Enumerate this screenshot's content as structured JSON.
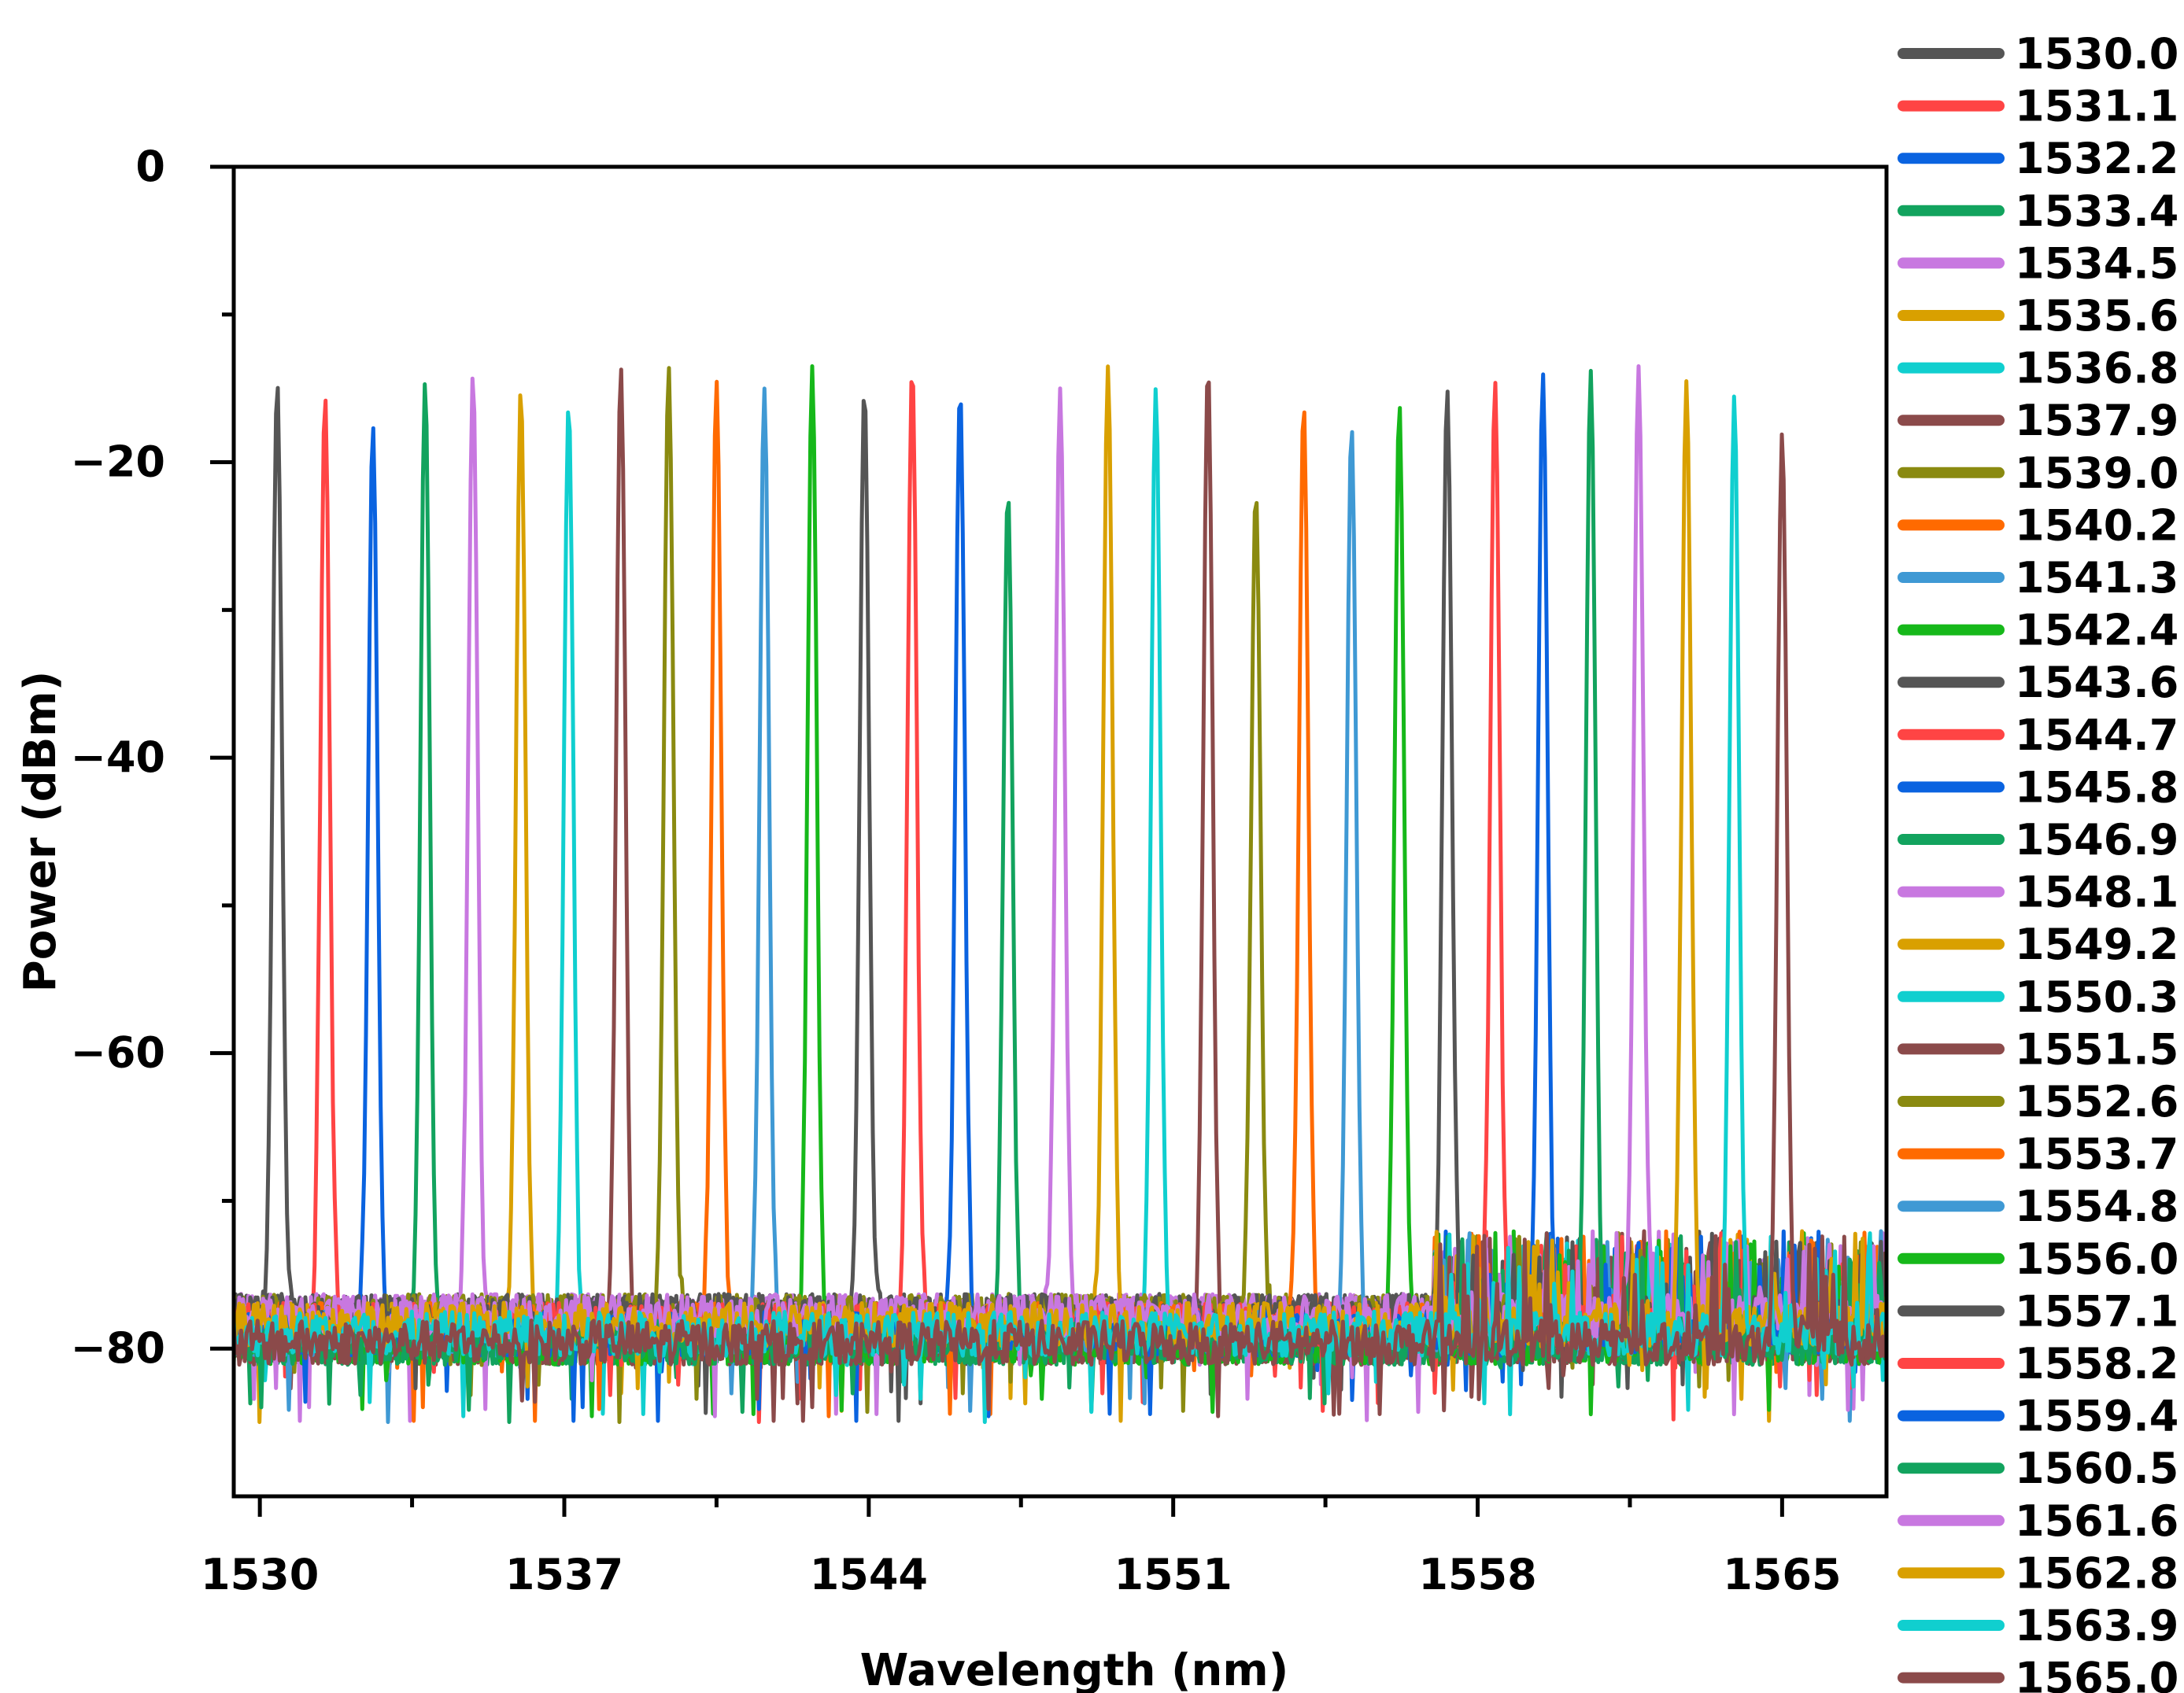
{
  "chart_data": {
    "type": "line",
    "xlabel": "Wavelength (nm)",
    "ylabel": "Power (dBm)",
    "xlim": [
      1529.4,
      1567.4
    ],
    "ylim": [
      -90,
      0
    ],
    "x_ticks": [
      1530,
      1537,
      1544,
      1551,
      1558,
      1565
    ],
    "y_ticks": [
      0,
      -20,
      -40,
      -60,
      -80
    ],
    "x_tick_labels": [
      "1530",
      "1537",
      "1544",
      "1551",
      "1558",
      "1565"
    ],
    "y_tick_labels": [
      "0",
      "−20",
      "−40",
      "−60",
      "−80"
    ],
    "noise_floor_dBm": -77,
    "legend_position": "right, outside plot",
    "grid": false,
    "series": [
      {
        "name": "1530.0",
        "peak_wavelength": 1530.4,
        "peak_power": -14.5,
        "color": "#555555"
      },
      {
        "name": "1531.1",
        "peak_wavelength": 1531.5,
        "peak_power": -15.5,
        "color": "#ff4444"
      },
      {
        "name": "1532.2",
        "peak_wavelength": 1532.6,
        "peak_power": -17.5,
        "color": "#0a63e0"
      },
      {
        "name": "1533.4",
        "peak_wavelength": 1533.8,
        "peak_power": -14.5,
        "color": "#12a35e"
      },
      {
        "name": "1534.5",
        "peak_wavelength": 1534.9,
        "peak_power": -14.0,
        "color": "#c878e0"
      },
      {
        "name": "1535.6",
        "peak_wavelength": 1536.0,
        "peak_power": -15.0,
        "color": "#d9a000"
      },
      {
        "name": "1536.8",
        "peak_wavelength": 1537.1,
        "peak_power": -16.0,
        "color": "#10cfcf"
      },
      {
        "name": "1537.9",
        "peak_wavelength": 1538.3,
        "peak_power": -13.5,
        "color": "#8b4a4a"
      },
      {
        "name": "1539.0",
        "peak_wavelength": 1539.4,
        "peak_power": -13.5,
        "color": "#8a8a10"
      },
      {
        "name": "1540.2",
        "peak_wavelength": 1540.5,
        "peak_power": -14.5,
        "color": "#ff6a00"
      },
      {
        "name": "1541.3",
        "peak_wavelength": 1541.6,
        "peak_power": -15.0,
        "color": "#3f99d4"
      },
      {
        "name": "1542.4",
        "peak_wavelength": 1542.7,
        "peak_power": -13.5,
        "color": "#16b81a"
      },
      {
        "name": "1543.6",
        "peak_wavelength": 1543.9,
        "peak_power": -15.0,
        "color": "#555555"
      },
      {
        "name": "1544.7",
        "peak_wavelength": 1545.0,
        "peak_power": -13.5,
        "color": "#ff4444"
      },
      {
        "name": "1545.8",
        "peak_wavelength": 1546.1,
        "peak_power": -15.0,
        "color": "#0a63e0"
      },
      {
        "name": "1546.9",
        "peak_wavelength": 1547.2,
        "peak_power": -22.0,
        "color": "#12a35e"
      },
      {
        "name": "1548.1",
        "peak_wavelength": 1548.4,
        "peak_power": -15.0,
        "color": "#c878e0"
      },
      {
        "name": "1549.2",
        "peak_wavelength": 1549.5,
        "peak_power": -13.5,
        "color": "#d9a000"
      },
      {
        "name": "1550.3",
        "peak_wavelength": 1550.6,
        "peak_power": -15.0,
        "color": "#10cfcf"
      },
      {
        "name": "1551.5",
        "peak_wavelength": 1551.8,
        "peak_power": -13.5,
        "color": "#8b4a4a"
      },
      {
        "name": "1552.6",
        "peak_wavelength": 1552.9,
        "peak_power": -22.0,
        "color": "#8a8a10"
      },
      {
        "name": "1553.7",
        "peak_wavelength": 1554.0,
        "peak_power": -16.0,
        "color": "#ff6a00"
      },
      {
        "name": "1554.8",
        "peak_wavelength": 1555.1,
        "peak_power": -17.5,
        "color": "#3f99d4"
      },
      {
        "name": "1556.0",
        "peak_wavelength": 1556.2,
        "peak_power": -16.0,
        "color": "#16b81a"
      },
      {
        "name": "1557.1",
        "peak_wavelength": 1557.3,
        "peak_power": -15.0,
        "color": "#555555"
      },
      {
        "name": "1558.2",
        "peak_wavelength": 1558.4,
        "peak_power": -14.5,
        "color": "#ff4444"
      },
      {
        "name": "1559.4",
        "peak_wavelength": 1559.5,
        "peak_power": -14.0,
        "color": "#0a63e0"
      },
      {
        "name": "1560.5",
        "peak_wavelength": 1560.6,
        "peak_power": -13.8,
        "color": "#12a35e"
      },
      {
        "name": "1561.6",
        "peak_wavelength": 1561.7,
        "peak_power": -13.5,
        "color": "#c878e0"
      },
      {
        "name": "1562.8",
        "peak_wavelength": 1562.8,
        "peak_power": -14.5,
        "color": "#d9a000"
      },
      {
        "name": "1563.9",
        "peak_wavelength": 1563.9,
        "peak_power": -15.5,
        "color": "#10cfcf"
      },
      {
        "name": "1565.0",
        "peak_wavelength": 1565.0,
        "peak_power": -18.0,
        "color": "#8b4a4a"
      }
    ]
  }
}
